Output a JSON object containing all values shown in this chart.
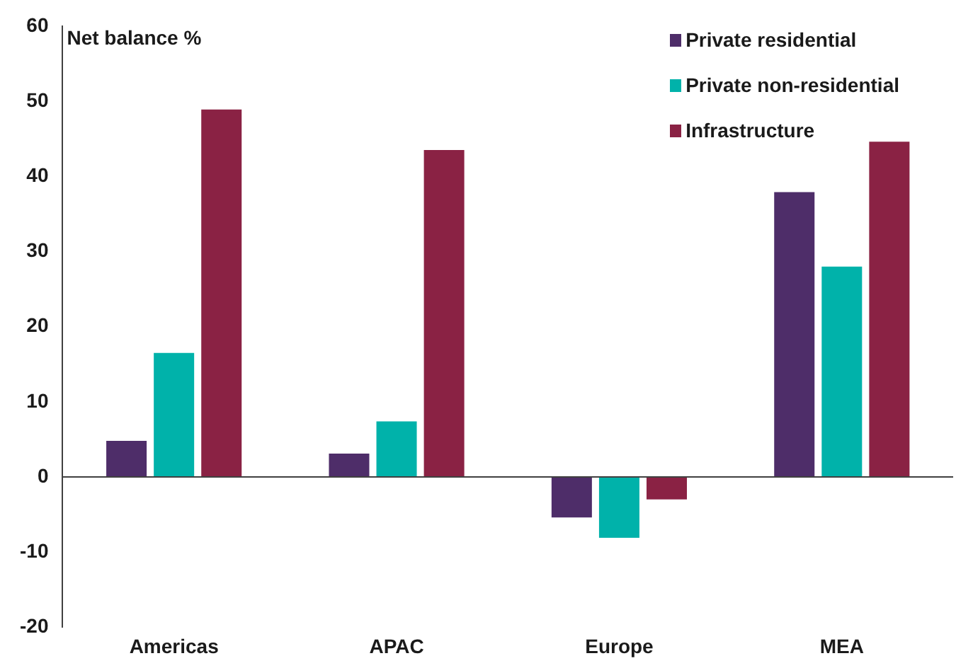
{
  "chart_data": {
    "type": "bar",
    "ylabel": "Net balance %",
    "categories": [
      "Americas",
      "APAC",
      "Europe",
      "MEA"
    ],
    "series": [
      {
        "name": "Private residential",
        "color": "#4e2d69",
        "values": [
          4.8,
          3.1,
          -5.4,
          37.9
        ]
      },
      {
        "name": "Private non-residential",
        "color": "#00b2aa",
        "values": [
          16.5,
          7.4,
          -8.1,
          28.0
        ]
      },
      {
        "name": "Infrastructure",
        "color": "#8a2244",
        "values": [
          48.9,
          43.5,
          -3.0,
          44.6
        ]
      }
    ],
    "ylim": [
      -20,
      60
    ],
    "yticks": [
      -20,
      -10,
      0,
      10,
      20,
      30,
      40,
      50,
      60
    ],
    "grid": false,
    "ref_lines": [
      {
        "axis": "y",
        "value": 0,
        "color": "#404040"
      }
    ],
    "legend": "top right"
  }
}
